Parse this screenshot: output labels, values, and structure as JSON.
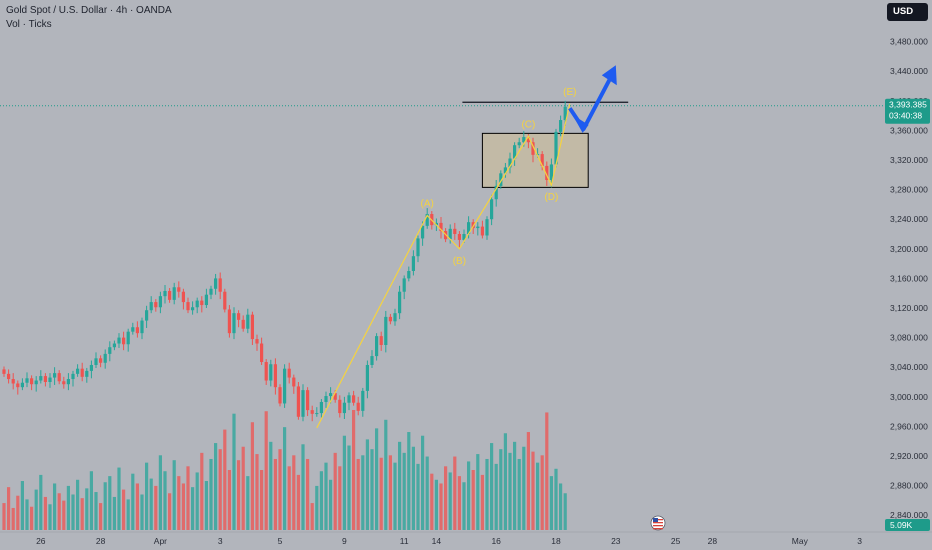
{
  "header": {
    "title": "Gold Spot / U.S. Dollar · 4h · OANDA",
    "indicator": "Vol · Ticks",
    "currency_button": "USD"
  },
  "price_tag": {
    "value": "3,393.385",
    "countdown": "03:40:38"
  },
  "volume_tag": "5.09K",
  "colors": {
    "background": "#b2b5bc",
    "up": "#26a69a",
    "down": "#ef5350",
    "wave": "#f5d33f",
    "arrow": "#1e5bf0",
    "box_fill": "#c9bc9c",
    "price_tag": "#1e9b8a",
    "volume_tag": "#1e9b8a"
  },
  "icons": {
    "event": "us-flag-event-icon"
  },
  "chart_data": {
    "type": "candlestick",
    "title": "Gold Spot / U.S. Dollar · 4h · OANDA",
    "ylim": [
      2820,
      3520
    ],
    "y_ticks": [
      "3,480.000",
      "3,440.000",
      "3,400.000",
      "3,360.000",
      "3,320.000",
      "3,280.000",
      "3,240.000",
      "3,200.000",
      "3,160.000",
      "3,120.000",
      "3,080.000",
      "3,040.000",
      "3,000.000",
      "2,960.000",
      "2,920.000",
      "2,880.000",
      "2,840.000"
    ],
    "y_tick_values": [
      3480,
      3440,
      3400,
      3360,
      3320,
      3280,
      3240,
      3200,
      3160,
      3120,
      3080,
      3040,
      3000,
      2960,
      2920,
      2880,
      2840
    ],
    "x_ticks": [
      "26",
      "28",
      "Apr",
      "3",
      "5",
      "9",
      "11",
      "14",
      "16",
      "18",
      "23",
      "25",
      "28",
      "May",
      "3"
    ],
    "x_tick_index": [
      8,
      21,
      34,
      47,
      60,
      74,
      87,
      94,
      107,
      120,
      133,
      146,
      154,
      173,
      186
    ],
    "current_price": 3393.385,
    "resistance_level": 3398,
    "zone": {
      "from_index": 104,
      "to_index": 127,
      "low": 3283,
      "high": 3356
    },
    "waves": [
      {
        "label": "(A)",
        "index": 92,
        "price": 3245
      },
      {
        "label": "(B)",
        "index": 99,
        "price": 3200
      },
      {
        "label": "(C)",
        "index": 114,
        "price": 3352
      },
      {
        "label": "(D)",
        "index": 119,
        "price": 3286
      },
      {
        "label": "(E)",
        "index": 123,
        "price": 3396
      }
    ],
    "wave_path": [
      {
        "index": 68,
        "price": 2958
      },
      {
        "index": 92,
        "price": 3245
      },
      {
        "index": 99,
        "price": 3200
      },
      {
        "index": 114,
        "price": 3352
      },
      {
        "index": 119,
        "price": 3286
      },
      {
        "index": 123,
        "price": 3396
      }
    ],
    "projection": [
      {
        "index": 123,
        "price": 3390
      },
      {
        "index": 126,
        "price": 3362
      },
      {
        "index": 133,
        "price": 3440
      }
    ],
    "closes": [
      3031,
      3024,
      3018,
      3013,
      3019,
      3025,
      3017,
      3022,
      3028,
      3020,
      3026,
      3032,
      3021,
      3017,
      3024,
      3031,
      3038,
      3027,
      3035,
      3043,
      3052,
      3046,
      3058,
      3067,
      3072,
      3080,
      3071,
      3088,
      3094,
      3086,
      3103,
      3117,
      3128,
      3121,
      3136,
      3143,
      3131,
      3148,
      3142,
      3128,
      3117,
      3121,
      3130,
      3124,
      3138,
      3146,
      3160,
      3142,
      3118,
      3086,
      3113,
      3104,
      3092,
      3111,
      3078,
      3072,
      3047,
      3022,
      3044,
      3013,
      2991,
      3038,
      3026,
      3014,
      2973,
      3009,
      2982,
      2977,
      2978,
      2993,
      3001,
      3005,
      2996,
      2978,
      2992,
      3002,
      2992,
      2981,
      3008,
      3043,
      3055,
      3082,
      3070,
      3108,
      3102,
      3113,
      3142,
      3160,
      3170,
      3190,
      3214,
      3231,
      3247,
      3232,
      3235,
      3224,
      3213,
      3227,
      3220,
      3212,
      3220,
      3236,
      3228,
      3230,
      3218,
      3240,
      3267,
      3285,
      3302,
      3310,
      3322,
      3340,
      3344,
      3351,
      3344,
      3327,
      3328,
      3312,
      3293,
      3314,
      3358,
      3374,
      3392
    ],
    "opens": [
      3037,
      3031,
      3024,
      3018,
      3013,
      3019,
      3025,
      3017,
      3022,
      3028,
      3020,
      3026,
      3032,
      3021,
      3017,
      3024,
      3031,
      3038,
      3027,
      3035,
      3043,
      3052,
      3046,
      3058,
      3067,
      3072,
      3080,
      3071,
      3088,
      3094,
      3086,
      3103,
      3117,
      3128,
      3121,
      3136,
      3143,
      3131,
      3148,
      3142,
      3128,
      3117,
      3121,
      3130,
      3124,
      3138,
      3146,
      3160,
      3142,
      3118,
      3086,
      3113,
      3104,
      3092,
      3111,
      3078,
      3072,
      3047,
      3022,
      3044,
      3013,
      2991,
      3038,
      3026,
      3014,
      2973,
      3009,
      2982,
      2977,
      2978,
      2993,
      3001,
      3005,
      2996,
      2978,
      2992,
      3002,
      2992,
      2981,
      3008,
      3043,
      3055,
      3082,
      3070,
      3108,
      3102,
      3113,
      3142,
      3160,
      3170,
      3190,
      3214,
      3231,
      3247,
      3232,
      3235,
      3224,
      3213,
      3227,
      3220,
      3212,
      3220,
      3236,
      3228,
      3230,
      3218,
      3240,
      3267,
      3285,
      3302,
      3310,
      3322,
      3340,
      3344,
      3351,
      3344,
      3327,
      3328,
      3312,
      3293,
      3314,
      3358,
      3374
    ],
    "volumes": [
      22,
      35,
      18,
      28,
      40,
      25,
      19,
      33,
      45,
      27,
      21,
      38,
      30,
      24,
      36,
      29,
      41,
      26,
      34,
      48,
      31,
      22,
      39,
      44,
      27,
      51,
      33,
      25,
      46,
      38,
      29,
      55,
      42,
      36,
      61,
      48,
      30,
      57,
      44,
      38,
      52,
      35,
      47,
      63,
      40,
      58,
      71,
      66,
      82,
      49,
      95,
      57,
      68,
      44,
      88,
      62,
      49,
      97,
      72,
      58,
      66,
      84,
      52,
      61,
      45,
      70,
      58,
      22,
      36,
      48,
      55,
      41,
      63,
      52,
      77,
      69,
      98,
      58,
      61,
      74,
      66,
      83,
      59,
      90,
      61,
      55,
      72,
      63,
      80,
      68,
      54,
      77,
      60,
      46,
      41,
      38,
      52,
      47,
      60,
      44,
      39,
      56,
      49,
      62,
      45,
      58,
      71,
      54,
      66,
      79,
      63,
      72,
      58,
      68,
      80,
      64,
      55,
      61,
      96,
      44,
      50,
      38,
      30
    ]
  }
}
